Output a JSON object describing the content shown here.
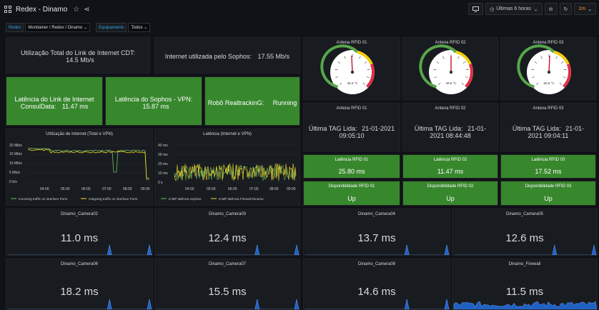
{
  "header": {
    "title": "Redex - Dinamo",
    "time_range": "Últimas 6 horas",
    "refresh_interval": "1m"
  },
  "variables": [
    {
      "label": "Redex",
      "value": "Monitainer / Redex / Dinamo"
    },
    {
      "label": "Equipamento",
      "value": "Todos"
    }
  ],
  "stats_top": [
    {
      "label": "Utilização Total do Link de Internet CDT:",
      "value": "14.5 Mb/s"
    },
    {
      "label": "Internet utilizada pelo Sophos:",
      "value": "17.55 Mb/s"
    }
  ],
  "stats_green": [
    {
      "label": "Latência do Link de Internet ConsulData:",
      "value": "11.47 ms"
    },
    {
      "label": "Latência do Sophos - VPN:",
      "value": "15.87 ms"
    },
    {
      "label": "Robô RealtrackinG:",
      "value": "Running"
    }
  ],
  "graph_internet": {
    "title": "Utilização de Internet (Total e VPN)",
    "y_ticks": [
      "20 Mb/s",
      "15 Mb/s",
      "10 Mb/s",
      "5 Mb/s",
      "0 b/s"
    ],
    "x_ticks": [
      "04:00",
      "05:00",
      "06:00",
      "07:00",
      "08:00",
      "09:00"
    ],
    "legend": [
      "Incoming traffic on interface Port1",
      "Outgoing traffic on interface Port1"
    ],
    "colors": [
      "#73bf69",
      "#fade2a"
    ]
  },
  "graph_latency": {
    "title": "Latência (Internet e VPN)",
    "y_ticks": [
      "40 ms",
      "30 ms",
      "20 ms",
      "10 ms",
      "0 s"
    ],
    "x_ticks": [
      "04:00",
      "05:00",
      "06:00",
      "07:00",
      "08:00",
      "09:00"
    ],
    "legend": [
      "ICMP latência Sophos",
      "ICMP latência Firewall Dinamo"
    ],
    "colors": [
      "#73bf69",
      "#fade2a"
    ]
  },
  "gauges": [
    {
      "title": "Antena RFID 01",
      "value": "48.6 °C",
      "level": 0.49
    },
    {
      "title": "Antena RFID 02",
      "value": "49.6 °C",
      "level": 0.5
    },
    {
      "title": "Antena RFID 03",
      "value": "50.6 °C",
      "level": 0.51
    }
  ],
  "last_tag": [
    {
      "title": "Antena RFID 01",
      "label": "Última TAG Lida:",
      "value": "21-01-2021 09:05:10"
    },
    {
      "title": "Antena RFID 02",
      "label": "Última TAG Lida:",
      "value": "21-01-2021 08:44:48"
    },
    {
      "title": "Antena RFID 03",
      "label": "Última TAG Lida:",
      "value": "21-01-2021 09:04:11"
    }
  ],
  "rfid_latency": [
    {
      "title": "Latência RFID 01",
      "value": "25.80 ms"
    },
    {
      "title": "Latência RFID 02",
      "value": "11.47 ms"
    },
    {
      "title": "Latência RFID 03",
      "value": "17.52 ms"
    }
  ],
  "rfid_availability": [
    {
      "title": "Disponibilidade RFID 01",
      "value": "Up"
    },
    {
      "title": "Disponibilidade RFID 02",
      "value": "Up"
    },
    {
      "title": "Disponibilidade RFID 03",
      "value": "Up"
    }
  ],
  "devices": [
    {
      "title": "Dinamo_Camera02",
      "value": "11.0 ms"
    },
    {
      "title": "Dinamo_Camera03",
      "value": "12.4 ms"
    },
    {
      "title": "Dinamo_Camera04",
      "value": "13.7 ms"
    },
    {
      "title": "Dinamo_Camera05",
      "value": "12.6 ms"
    },
    {
      "title": "Dinamo_Camera06",
      "value": "18.2 ms"
    },
    {
      "title": "Dinamo_Camera07",
      "value": "15.5 ms"
    },
    {
      "title": "Dinamo_Camera08",
      "value": "14.6 ms"
    },
    {
      "title": "Dinamo_Firewall",
      "value": "11.5 ms"
    }
  ],
  "colors": {
    "green": "#37872d",
    "accent": "#5794f2",
    "background": "#111217",
    "panel": "#181b1f"
  }
}
